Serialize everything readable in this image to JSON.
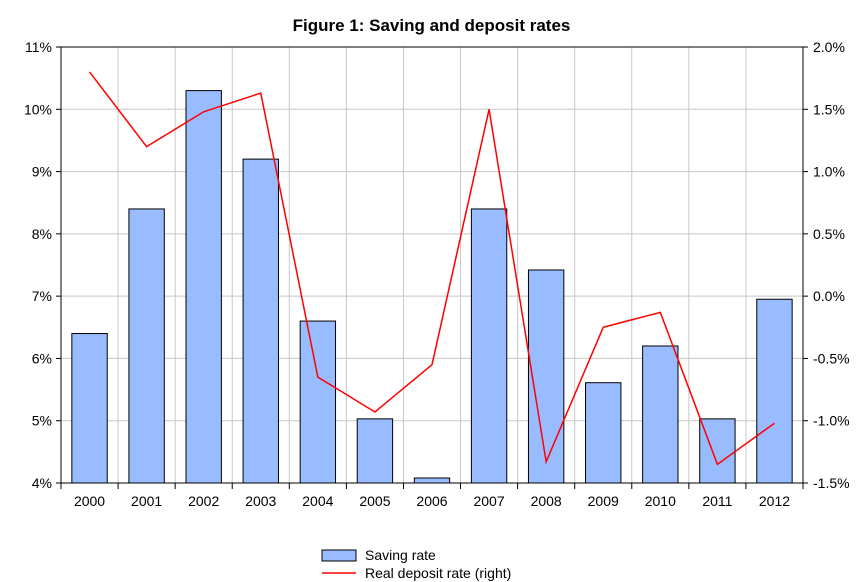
{
  "chart_data": {
    "type": "bar",
    "title": "Figure 1: Saving and deposit rates",
    "categories": [
      "2000",
      "2001",
      "2002",
      "2003",
      "2004",
      "2005",
      "2006",
      "2007",
      "2008",
      "2009",
      "2010",
      "2011",
      "2012"
    ],
    "series": [
      {
        "name": "Saving rate",
        "type": "bar",
        "axis": "left",
        "color": "#99BBFF",
        "values": [
          6.4,
          8.4,
          10.3,
          9.2,
          6.6,
          5.03,
          4.08,
          8.4,
          7.42,
          5.61,
          6.2,
          5.03,
          6.95
        ]
      },
      {
        "name": "Real deposit rate (right)",
        "type": "line",
        "axis": "right",
        "color": "#FF0000",
        "values": [
          1.8,
          1.2,
          1.48,
          1.63,
          -0.65,
          -0.93,
          -0.55,
          1.5,
          -1.33,
          -0.25,
          -0.13,
          -1.35,
          -1.02
        ]
      }
    ],
    "y_left": {
      "ylim": [
        4,
        11
      ],
      "ticks": [
        4,
        5,
        6,
        7,
        8,
        9,
        10,
        11
      ],
      "tick_labels": [
        "4%",
        "5%",
        "6%",
        "7%",
        "8%",
        "9%",
        "10%",
        "11%"
      ]
    },
    "y_right": {
      "ylim": [
        -1.5,
        2.0
      ],
      "ticks": [
        -1.5,
        -1.0,
        -0.5,
        0.0,
        0.5,
        1.0,
        1.5,
        2.0
      ],
      "tick_labels": [
        "-1.5%",
        "-1.0%",
        "-0.5%",
        "0.0%",
        "0.5%",
        "1.0%",
        "1.5%",
        "2.0%"
      ]
    },
    "xlabel": "",
    "ylabel": "",
    "grid": true,
    "legend_position": "bottom-center"
  }
}
